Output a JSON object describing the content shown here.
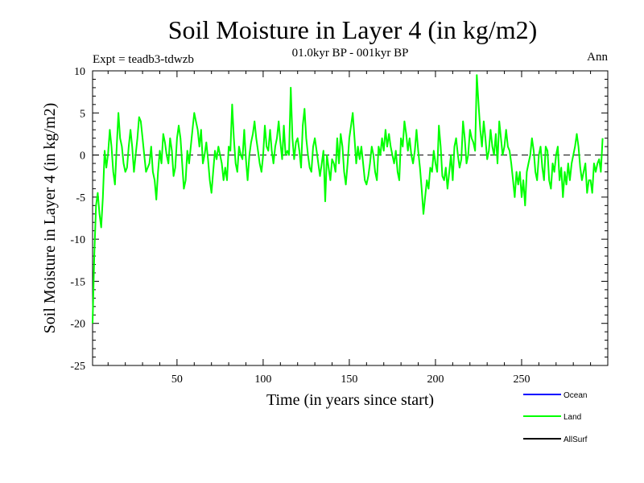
{
  "chart_data": {
    "type": "line",
    "title": "Soil Moisture in Layer 4 (in kg/m2)",
    "subtitle": "01.0kyr BP - 001kyr BP",
    "experiment": "Expt = teadb3-tdwzb",
    "period": "Ann",
    "xlabel": "Time (in years since start)",
    "ylabel": "Soil Moisture in Layer 4 (in kg/m2)",
    "xlim": [
      1,
      300
    ],
    "ylim": [
      -25,
      10
    ],
    "x_ticks": [
      50,
      100,
      150,
      200,
      250
    ],
    "y_ticks": [
      10,
      5,
      0,
      -5,
      -10,
      -15,
      -20,
      -25
    ],
    "reference_line": 0,
    "legend": [
      {
        "name": "Ocean",
        "color": "#0000ff"
      },
      {
        "name": "Land",
        "color": "#00ff00"
      },
      {
        "name": "AllSurf",
        "color": "#000000"
      }
    ],
    "series": [
      {
        "name": "Land",
        "color": "#00ff00",
        "x_start": 1,
        "x_step": 1,
        "values": [
          -20,
          -12,
          -6,
          -4.5,
          -7,
          -8.6,
          -5,
          0.5,
          -1.5,
          0.2,
          3,
          1,
          -2,
          -3.5,
          1,
          5,
          2,
          1,
          -1,
          -2,
          -1.5,
          1,
          3,
          1,
          -2,
          0,
          2,
          4.5,
          4,
          2,
          0,
          -2,
          -1.5,
          -1,
          1,
          -2,
          -3,
          -5.3,
          -2,
          0.5,
          -1,
          2.5,
          1.5,
          0,
          -1,
          2,
          0.5,
          -2.5,
          -1.5,
          2,
          3.5,
          2,
          -1,
          -4,
          -3,
          0.5,
          -1,
          1,
          3,
          5,
          4,
          3,
          1,
          3,
          -1,
          0,
          1.5,
          -0.5,
          -3,
          -4.5,
          -2,
          0.5,
          -0.5,
          1,
          0,
          -1,
          -3,
          -1.5,
          -3,
          1,
          0.5,
          6,
          2,
          -1,
          -2,
          1,
          0,
          -0.5,
          3,
          -0.5,
          -3,
          0,
          1.5,
          2.5,
          4,
          2,
          0.5,
          -1,
          -2,
          0,
          3.5,
          1,
          0.5,
          3,
          0.5,
          -1,
          1,
          2,
          4,
          1.5,
          -0.5,
          3.5,
          0,
          0.5,
          0,
          8,
          2,
          -0.5,
          1.5,
          2,
          0.5,
          -1.5,
          3.5,
          5.5,
          2,
          0,
          -1.5,
          -2,
          1,
          2,
          0.5,
          -1,
          -2.5,
          -1,
          0.5,
          -5.5,
          0,
          -1.5,
          -3,
          -0.5,
          -1,
          -2,
          2,
          -1,
          2.5,
          1,
          -2,
          -3.5,
          -1,
          2,
          3.5,
          5,
          2,
          -1,
          1,
          -0.5,
          1,
          -1,
          -3,
          -3.5,
          -2.5,
          -1,
          1,
          0,
          -2,
          -3,
          1,
          0,
          2,
          0.5,
          3,
          1,
          2.5,
          1,
          0,
          -1,
          0.5,
          -2,
          -3,
          2,
          1,
          4,
          2.5,
          0.5,
          2,
          0,
          -1,
          0.5,
          3,
          0.5,
          -1.5,
          -4,
          -7,
          -5,
          -3,
          -4,
          -1.5,
          -2,
          0.5,
          -1,
          -2,
          3.5,
          1,
          -2.5,
          -3,
          -1.5,
          -4,
          -2,
          0,
          -3,
          1,
          2,
          0,
          -1.5,
          -0.5,
          4,
          2,
          -1,
          0,
          3,
          2,
          1.5,
          0.5,
          9.5,
          6,
          3,
          1,
          4,
          2,
          -0.5,
          0.5,
          3,
          1,
          0,
          2.5,
          -1,
          4,
          2,
          0,
          1,
          3,
          1,
          0.5,
          -1,
          -3,
          -5,
          -2,
          -3.5,
          -2,
          -5,
          -3,
          -6,
          -2,
          -1,
          0,
          2,
          0.5,
          -2,
          -3,
          0,
          1,
          -1.5,
          -3,
          1,
          0.5,
          -3,
          -4,
          -1,
          -2,
          0,
          1,
          -3,
          -1.5,
          -5,
          -2,
          -3.5,
          -1,
          -3,
          -1,
          0,
          1,
          2.5,
          1,
          -1.5,
          -3,
          -2,
          -1,
          -4.5,
          -3,
          -3,
          -4.5,
          -1,
          -2,
          -1,
          -0.5,
          -2,
          2
        ]
      }
    ]
  }
}
